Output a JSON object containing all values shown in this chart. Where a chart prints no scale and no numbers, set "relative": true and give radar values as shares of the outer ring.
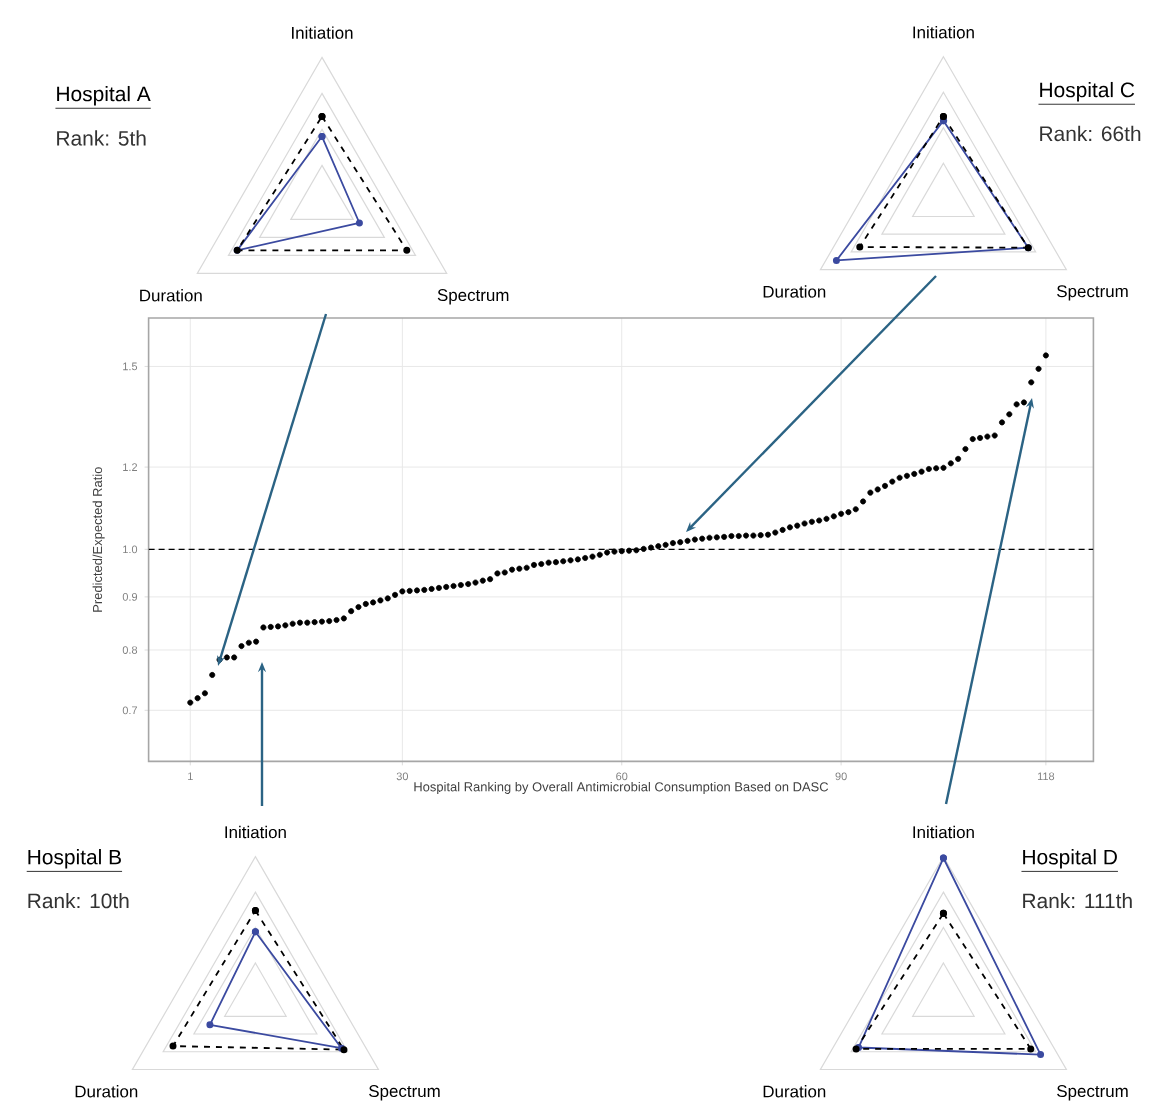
{
  "chart_data": [
    {
      "type": "radar",
      "title": "Hospital A",
      "subtitle": "Rank: 5th",
      "categories": [
        "Initiation",
        "Spectrum",
        "Duration"
      ],
      "relative": true,
      "marker": "circle",
      "series": [
        {
          "color": "#3b4aa0",
          "line_style": "solid",
          "values": [
            0.45,
            0.3,
            0.68
          ]
        },
        {
          "color": "#000000",
          "line_style": "dashed",
          "values": [
            0.59,
            0.68,
            0.68
          ]
        }
      ]
    },
    {
      "type": "radar",
      "title": "Hospital C",
      "subtitle": "Rank: 66th",
      "categories": [
        "Initiation",
        "Spectrum",
        "Duration"
      ],
      "relative": true,
      "marker": "circle",
      "series": [
        {
          "color": "#3b4aa0",
          "line_style": "solid",
          "values": [
            0.55,
            0.69,
            0.87
          ]
        },
        {
          "color": "#000000",
          "line_style": "dashed",
          "values": [
            0.58,
            0.69,
            0.68
          ]
        }
      ]
    },
    {
      "type": "scatter",
      "xlabel": "Hospital Ranking by Overall Antimicrobial Consumption Based on DASC",
      "ylabel": "Predicted/Expected Ratio",
      "color": "#000000",
      "marker": "circle",
      "log": "y",
      "grid": true,
      "xlim": [
        -4.7,
        124.5
      ],
      "ylim": [
        0.625,
        1.67
      ],
      "xticks": [
        1,
        30,
        60,
        90,
        118
      ],
      "yticks": [
        0.7,
        0.8,
        0.9,
        {
          "value": 1.0,
          "label": "1.0"
        },
        1.2,
        1.5
      ],
      "ref_lines": [
        {
          "axis": "y",
          "value": 1.0,
          "color": "#000000",
          "line_style": "dashed"
        }
      ],
      "x": [
        1,
        2,
        3,
        4,
        5,
        6,
        7,
        8,
        9,
        10,
        11,
        12,
        13,
        14,
        15,
        16,
        17,
        18,
        19,
        20,
        21,
        22,
        23,
        24,
        25,
        26,
        27,
        28,
        29,
        30,
        31,
        32,
        33,
        34,
        35,
        36,
        37,
        38,
        39,
        40,
        41,
        42,
        43,
        44,
        45,
        46,
        47,
        48,
        49,
        50,
        51,
        52,
        53,
        54,
        55,
        56,
        57,
        58,
        59,
        60,
        61,
        62,
        63,
        64,
        65,
        66,
        67,
        68,
        69,
        70,
        71,
        72,
        73,
        74,
        75,
        76,
        77,
        78,
        79,
        80,
        81,
        82,
        83,
        84,
        85,
        86,
        87,
        88,
        89,
        90,
        91,
        92,
        93,
        94,
        95,
        96,
        97,
        98,
        99,
        100,
        101,
        102,
        103,
        104,
        105,
        106,
        107,
        108,
        109,
        110,
        111,
        112,
        113,
        114,
        115,
        116,
        117,
        118
      ],
      "values": [
        0.712,
        0.719,
        0.727,
        0.757,
        0.783,
        0.787,
        0.787,
        0.807,
        0.813,
        0.815,
        0.841,
        0.842,
        0.843,
        0.845,
        0.848,
        0.85,
        0.85,
        0.851,
        0.852,
        0.853,
        0.855,
        0.858,
        0.872,
        0.88,
        0.886,
        0.889,
        0.893,
        0.897,
        0.904,
        0.911,
        0.912,
        0.913,
        0.914,
        0.916,
        0.918,
        0.92,
        0.922,
        0.924,
        0.926,
        0.929,
        0.933,
        0.936,
        0.948,
        0.95,
        0.956,
        0.958,
        0.96,
        0.966,
        0.968,
        0.971,
        0.972,
        0.974,
        0.976,
        0.978,
        0.981,
        0.984,
        0.988,
        0.993,
        0.995,
        0.996,
        0.997,
        0.998,
        1.001,
        1.004,
        1.007,
        1.01,
        1.014,
        1.016,
        1.019,
        1.022,
        1.024,
        1.026,
        1.027,
        1.028,
        1.03,
        1.03,
        1.031,
        1.031,
        1.032,
        1.033,
        1.038,
        1.044,
        1.05,
        1.054,
        1.059,
        1.063,
        1.066,
        1.07,
        1.076,
        1.082,
        1.086,
        1.093,
        1.112,
        1.134,
        1.142,
        1.151,
        1.162,
        1.172,
        1.177,
        1.182,
        1.188,
        1.195,
        1.197,
        1.198,
        1.21,
        1.222,
        1.249,
        1.277,
        1.28,
        1.284,
        1.287,
        1.325,
        1.349,
        1.379,
        1.385,
        1.448,
        1.492,
        1.537
      ]
    },
    {
      "type": "radar",
      "title": "Hospital B",
      "subtitle": "Rank: 10th",
      "categories": [
        "Initiation",
        "Spectrum",
        "Duration"
      ],
      "relative": true,
      "marker": "circle",
      "series": [
        {
          "color": "#3b4aa0",
          "line_style": "solid",
          "values": [
            0.47,
            0.7,
            0.37
          ]
        },
        {
          "color": "#000000",
          "line_style": "dashed",
          "values": [
            0.62,
            0.72,
            0.67
          ]
        }
      ]
    },
    {
      "type": "radar",
      "title": "Hospital D",
      "subtitle": "Rank: 111th",
      "categories": [
        "Initiation",
        "Spectrum",
        "Duration"
      ],
      "relative": true,
      "marker": "circle",
      "series": [
        {
          "color": "#3b4aa0",
          "line_style": "solid",
          "values": [
            0.99,
            0.79,
            0.69
          ]
        },
        {
          "color": "#000000",
          "line_style": "dashed",
          "values": [
            0.6,
            0.71,
            0.71
          ]
        }
      ]
    }
  ]
}
